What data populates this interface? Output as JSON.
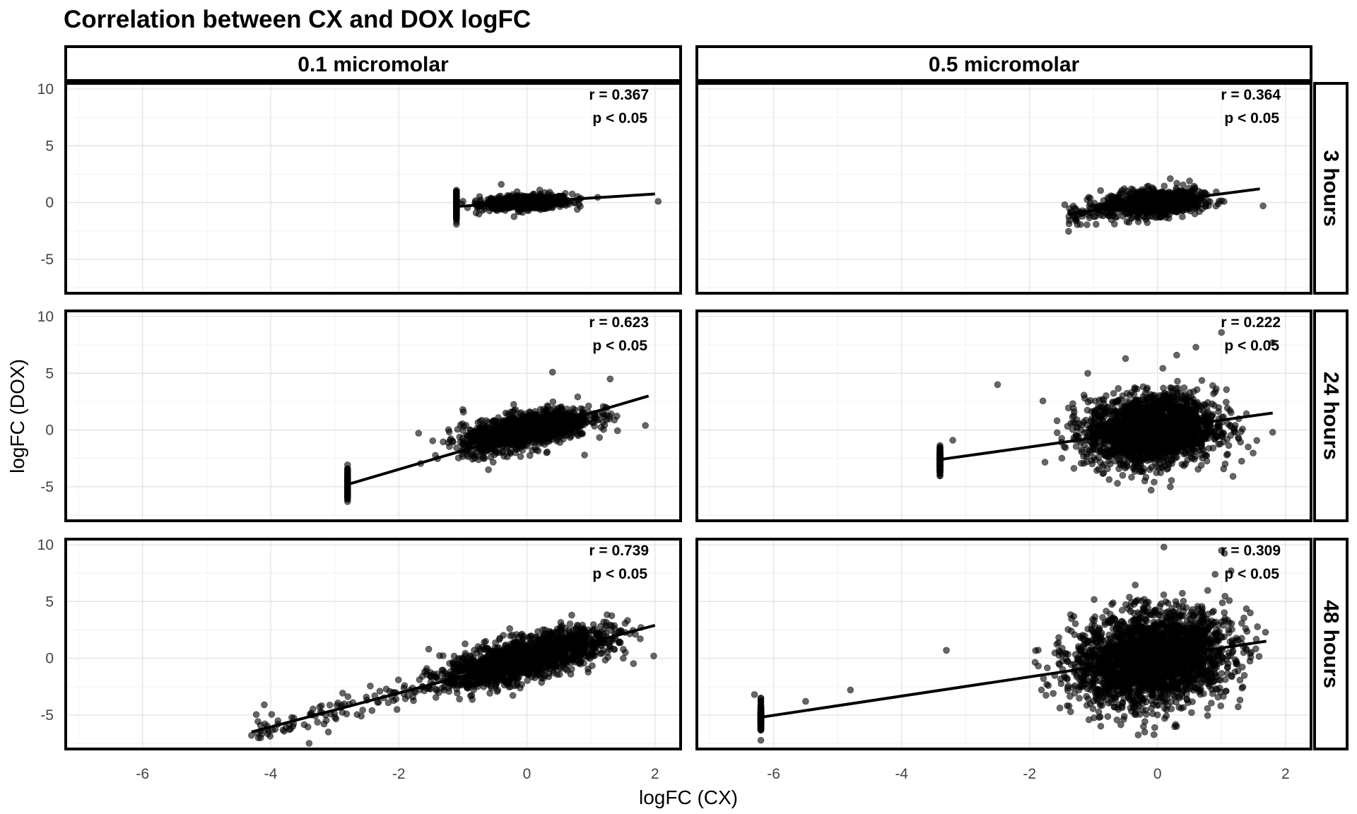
{
  "chart_data": {
    "type": "scatter",
    "title": "Correlation between CX and DOX logFC",
    "xlabel": "logFC (CX)",
    "ylabel": "logFC (DOX)",
    "xlim": [
      -7.2,
      2.4
    ],
    "ylim": [
      -8,
      10.5
    ],
    "x_ticks": [
      -6,
      -4,
      -2,
      0,
      2
    ],
    "y_ticks": [
      -5,
      0,
      5,
      10
    ],
    "grid": true,
    "columns": [
      "0.1 micromolar",
      "0.5 micromolar"
    ],
    "rows": [
      "3 hours",
      "24 hours",
      "48 hours"
    ],
    "point_color": "#000000",
    "point_opacity": 0.6,
    "line_color": "#000000",
    "panels": [
      {
        "column": "0.1 micromolar",
        "row": "3 hours",
        "r_label": "r = 0.367",
        "p_label": "p < 0.05",
        "line": [
          [
            -1.1,
            -0.35
          ],
          [
            2.0,
            0.75
          ]
        ],
        "cloud": {
          "cx": 0.0,
          "cy": 0.0,
          "sx": 0.35,
          "sy": 0.3,
          "slope": 0.2,
          "n": 700,
          "xmin": -1.1,
          "xmax": 1.2
        },
        "outliers": [
          [
            2.05,
            0.1
          ],
          [
            -0.4,
            1.6
          ],
          [
            -1.1,
            -0.3
          ],
          [
            0.6,
            0.8
          ],
          [
            0.2,
            1.1
          ]
        ]
      },
      {
        "column": "0.5 micromolar",
        "row": "3 hours",
        "r_label": "r = 0.364",
        "p_label": "p < 0.05",
        "line": [
          [
            -1.4,
            -1.0
          ],
          [
            1.6,
            1.2
          ]
        ],
        "cloud": {
          "cx": 0.0,
          "cy": 0.0,
          "sx": 0.35,
          "sy": 0.55,
          "slope": 0.3,
          "n": 700,
          "xmin": -1.5,
          "xmax": 1.5
        },
        "outliers": [
          [
            1.65,
            -0.3
          ],
          [
            -1.45,
            -0.2
          ],
          [
            -0.3,
            -1.7
          ],
          [
            0.5,
            1.9
          ],
          [
            0.2,
            2.1
          ]
        ]
      },
      {
        "column": "0.1 micromolar",
        "row": "24 hours",
        "r_label": "r = 0.623",
        "p_label": "p < 0.05",
        "line": [
          [
            -2.8,
            -4.8
          ],
          [
            1.9,
            3.0
          ]
        ],
        "cloud": {
          "cx": 0.0,
          "cy": 0.0,
          "sx": 0.5,
          "sy": 0.75,
          "slope": 1.1,
          "n": 1300,
          "xmin": -2.8,
          "xmax": 1.6
        },
        "outliers": [
          [
            1.85,
            0.4
          ],
          [
            1.3,
            4.5
          ],
          [
            0.4,
            5.1
          ],
          [
            -0.6,
            -3.5
          ],
          [
            -2.8,
            -4.7
          ],
          [
            -1.0,
            1.8
          ],
          [
            0.9,
            -2.2
          ]
        ]
      },
      {
        "column": "0.5 micromolar",
        "row": "24 hours",
        "r_label": "r = 0.222",
        "p_label": "p < 0.05",
        "line": [
          [
            -3.4,
            -2.6
          ],
          [
            1.8,
            1.5
          ]
        ],
        "cloud": {
          "cx": -0.1,
          "cy": 0.0,
          "sx": 0.5,
          "sy": 1.5,
          "slope": 0.35,
          "n": 2200,
          "xmin": -3.4,
          "xmax": 1.8
        },
        "outliers": [
          [
            1.0,
            8.6
          ],
          [
            0.6,
            7.3
          ],
          [
            1.8,
            -0.2
          ],
          [
            1.8,
            7.7
          ],
          [
            -0.1,
            -5.3
          ],
          [
            0.2,
            -5.0
          ],
          [
            -2.5,
            4.0
          ],
          [
            -0.5,
            6.3
          ],
          [
            0.3,
            6.6
          ],
          [
            -3.4,
            -1.5
          ],
          [
            -3.2,
            -0.9
          ]
        ]
      },
      {
        "column": "0.1 micromolar",
        "row": "48 hours",
        "r_label": "r = 0.739",
        "p_label": "p < 0.05",
        "line": [
          [
            -4.3,
            -6.5
          ],
          [
            2.0,
            2.9
          ]
        ],
        "cloud": {
          "cx": 0.0,
          "cy": 0.0,
          "sx": 0.65,
          "sy": 0.9,
          "slope": 1.35,
          "n": 1600,
          "xmin": -4.4,
          "xmax": 1.8
        },
        "outliers": [
          [
            1.98,
            0.2
          ],
          [
            -4.3,
            -6.8
          ],
          [
            -3.4,
            -7.5
          ],
          [
            -4.1,
            -4.1
          ],
          [
            -3.1,
            -6.5
          ],
          [
            1.2,
            3.2
          ],
          [
            0.7,
            3.8
          ]
        ]
      },
      {
        "column": "0.5 micromolar",
        "row": "48 hours",
        "r_label": "r = 0.309",
        "p_label": "p < 0.05",
        "line": [
          [
            -6.2,
            -5.2
          ],
          [
            1.7,
            1.5
          ]
        ],
        "cloud": {
          "cx": -0.1,
          "cy": 0.0,
          "sx": 0.6,
          "sy": 2.0,
          "slope": 0.6,
          "n": 2600,
          "xmin": -6.2,
          "xmax": 1.7
        },
        "outliers": [
          [
            -6.3,
            -3.2
          ],
          [
            0.1,
            9.8
          ],
          [
            1.0,
            9.5
          ],
          [
            0.9,
            7.4
          ],
          [
            1.15,
            7.7
          ],
          [
            -0.2,
            -6.5
          ],
          [
            0.3,
            -6.0
          ],
          [
            1.45,
            4.0
          ],
          [
            -4.8,
            -2.8
          ],
          [
            -5.5,
            -3.8
          ],
          [
            -3.3,
            0.7
          ]
        ]
      }
    ]
  }
}
